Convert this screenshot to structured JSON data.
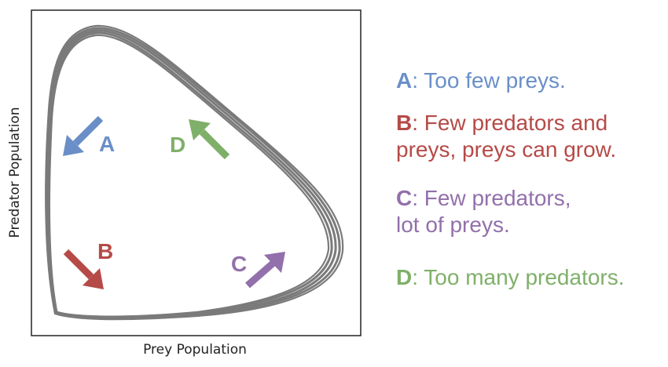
{
  "axes": {
    "xlabel": "Prey Population",
    "ylabel": "Predator Population"
  },
  "colors": {
    "A": "#6a8fc8",
    "B": "#b54a47",
    "C": "#9270ab",
    "D": "#7fb069",
    "cycle": "#7a7a7a"
  },
  "markers": {
    "A": "A",
    "B": "B",
    "C": "C",
    "D": "D"
  },
  "legend": {
    "a": {
      "key": "A",
      "text": ": Too few preys."
    },
    "b": {
      "key": "B",
      "line1": ": Few predators and",
      "line2": "preys, preys can grow."
    },
    "c": {
      "key": "C",
      "line1": ": Few predators,",
      "line2": "lot of preys."
    },
    "d": {
      "key": "D",
      "text": ": Too many predators."
    }
  }
}
